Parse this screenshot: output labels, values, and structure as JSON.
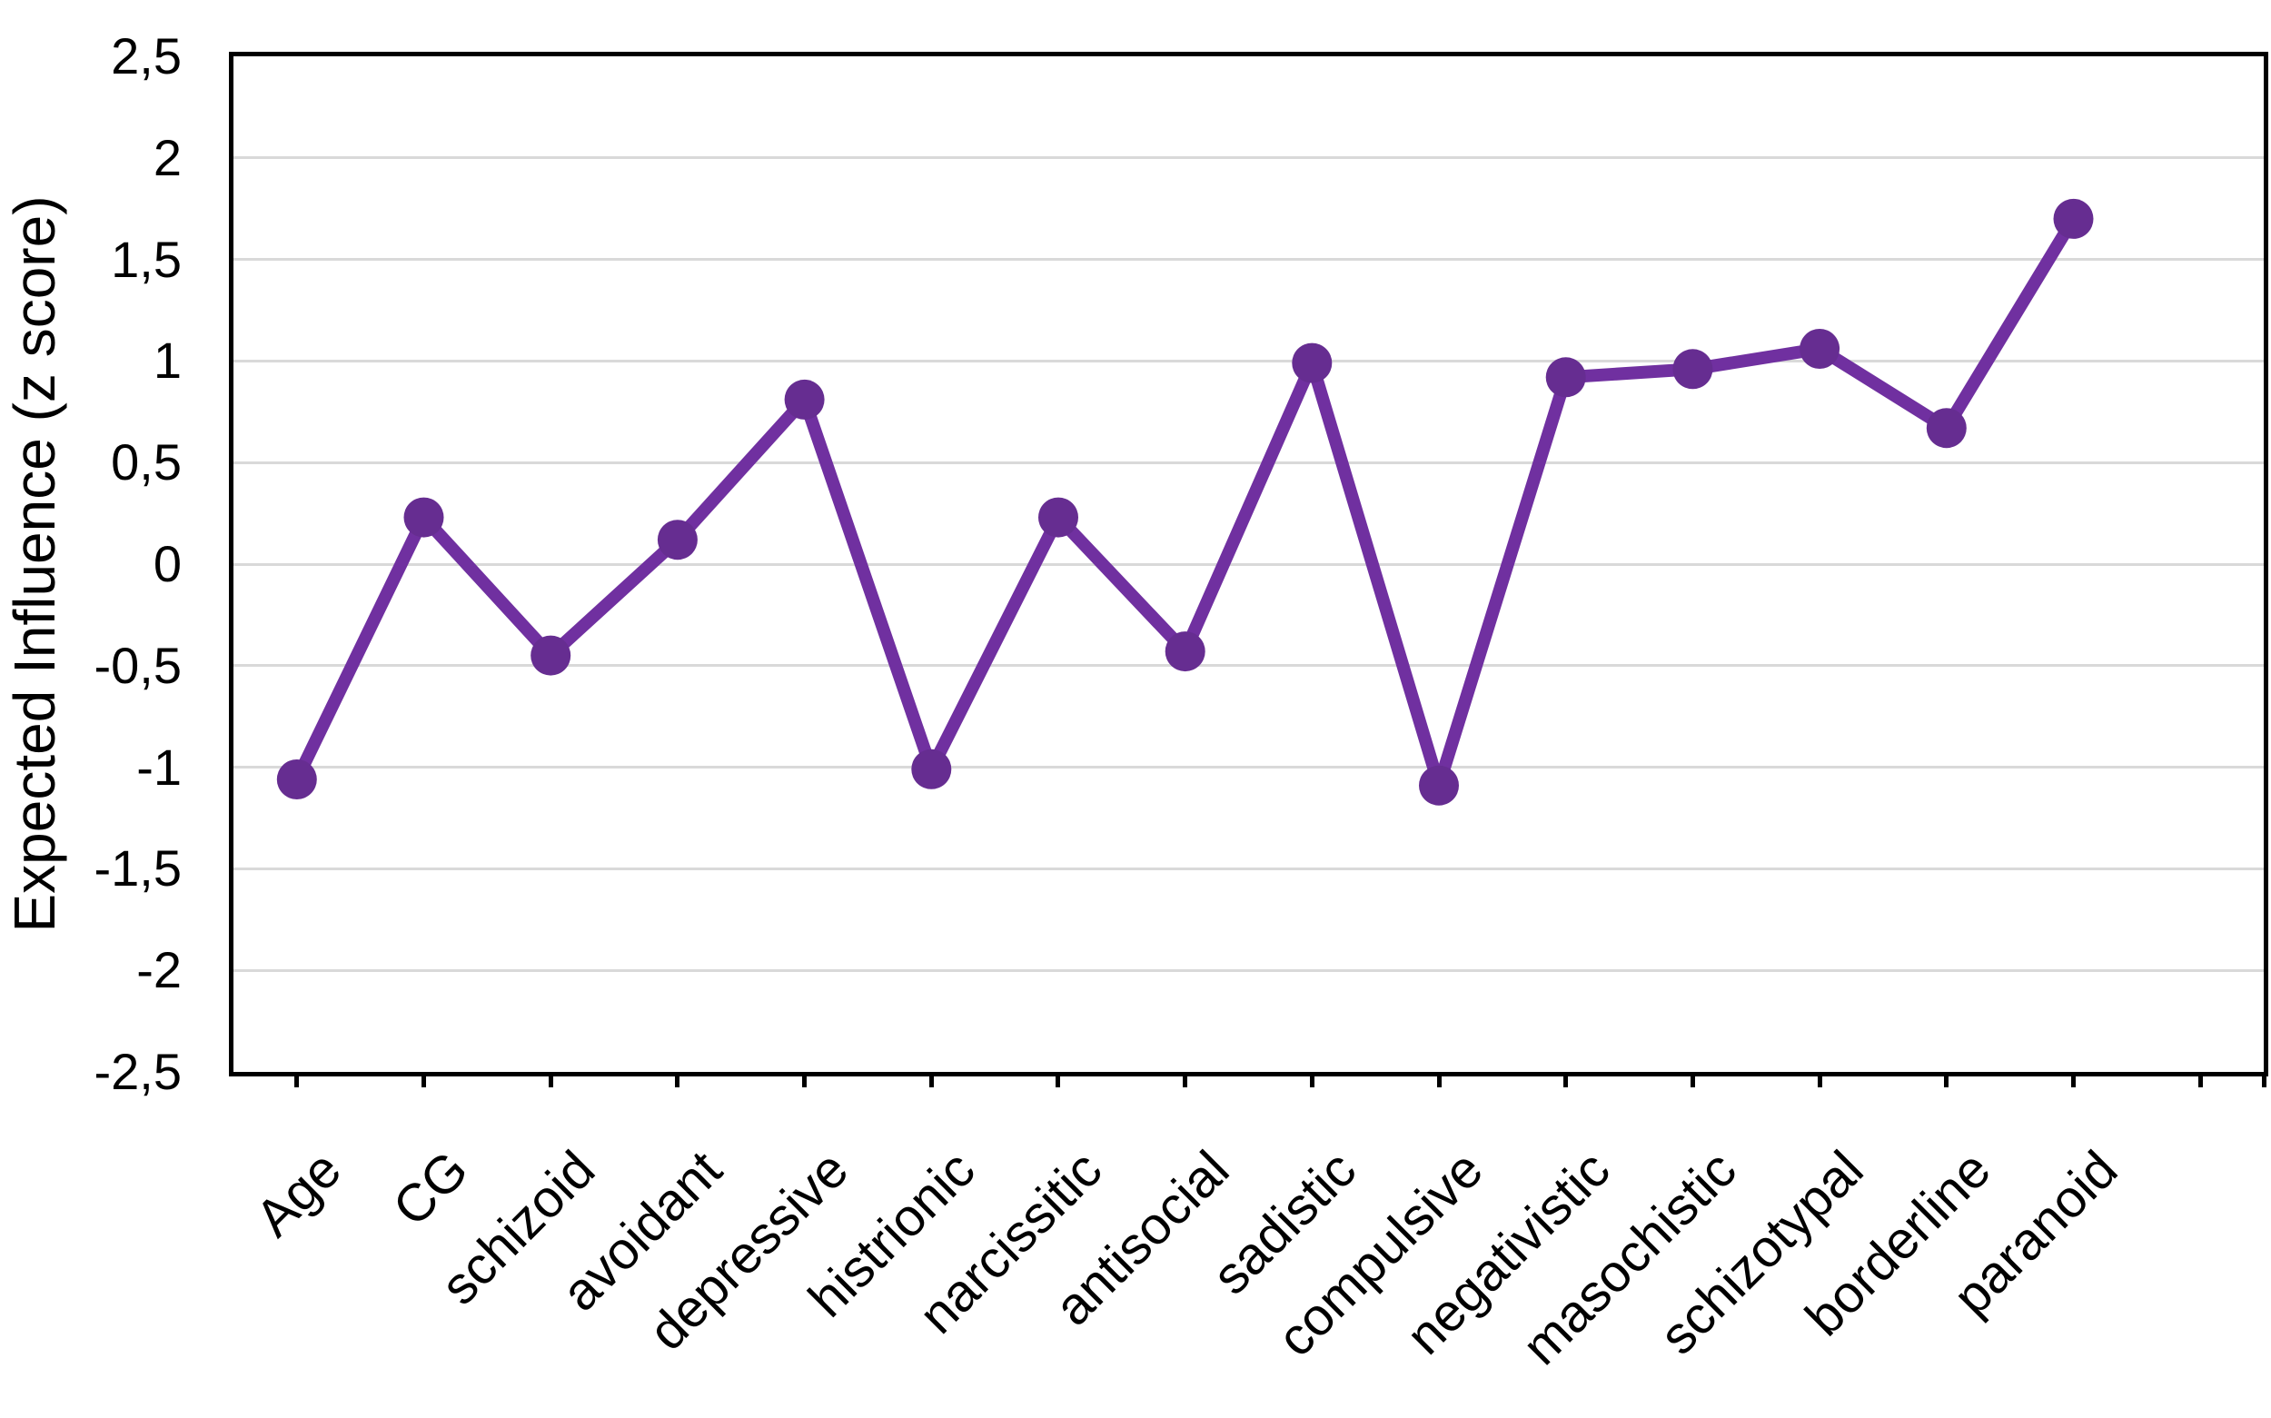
{
  "chart_data": {
    "type": "line",
    "title": "",
    "ylabel": "Expected Influence (z score)",
    "xlabel": "",
    "ylim": [
      -2.5,
      2.5
    ],
    "ytick_step": 0.5,
    "ytick_labels": [
      "2,5",
      "2",
      "1,5",
      "1",
      "0,5",
      "0",
      "-0,5",
      "-1",
      "-1,5",
      "-2",
      "-2,5"
    ],
    "decimal_separator": ",",
    "categories": [
      "Age",
      "CG",
      "schizoid",
      "avoidant",
      "depressive",
      "histrionic",
      "narcissitic",
      "antisocial",
      "sadistic",
      "compulsive",
      "negativistic",
      "masochistic",
      "schizotypal",
      "borderline",
      "paranoid"
    ],
    "series": [
      {
        "name": "Expected Influence",
        "values": [
          -1.06,
          0.23,
          -0.45,
          0.12,
          0.81,
          -1.01,
          0.23,
          -0.43,
          0.99,
          -1.09,
          0.92,
          0.96,
          1.06,
          0.67,
          1.7
        ]
      }
    ],
    "empty_trailing_slots": 1,
    "grid": true,
    "legend": false,
    "marker_shape": "circle",
    "label_rotation_deg": 45,
    "colors": {
      "line": "#7030A0",
      "marker": "#662D91",
      "gridline": "#D9D9D9",
      "axis": "#000000",
      "background": "#FFFFFF",
      "text": "#000000"
    }
  }
}
